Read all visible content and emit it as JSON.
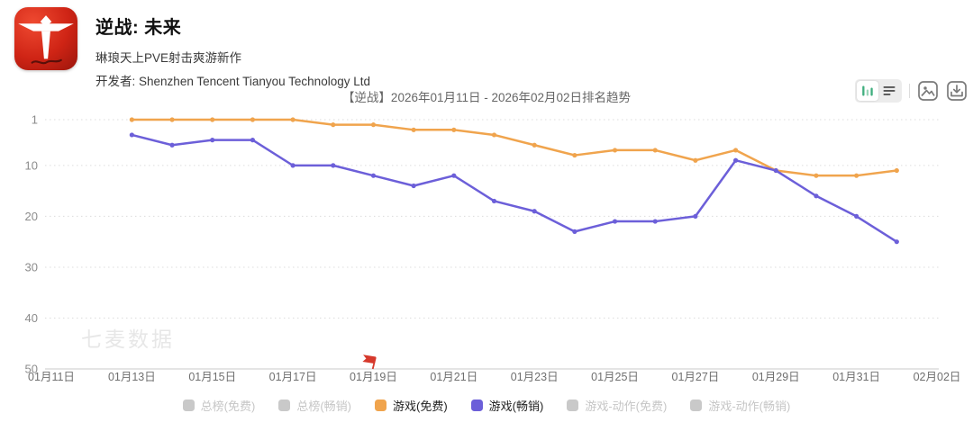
{
  "app": {
    "name": "逆战: 未来",
    "tagline": "琳琅天上PVE射击爽游新作",
    "developer_label": "开发者:",
    "developer_name": "Shenzhen Tencent Tianyou Technology Ltd",
    "icon": "nizhan-red-app-icon"
  },
  "chart_header": {
    "title": "【逆战】2026年01月11日 - 2026年02月02日排名趋势",
    "toolbar_icons": [
      "bar-chart-icon",
      "list-icon",
      "image-icon",
      "download-icon"
    ],
    "toolbar_accent_green": "#3fae7e"
  },
  "watermark": "七麦数据",
  "chart_data": {
    "type": "line",
    "title": "【逆战】2026年01月11日 - 2026年02月02日排名趋势",
    "y_axis": {
      "ticks": [
        1,
        10,
        20,
        30,
        40,
        50
      ],
      "inverted": true,
      "min": 1,
      "max": 50
    },
    "x_tick_labels": [
      "01月11日",
      "01月13日",
      "01月15日",
      "01月17日",
      "01月19日",
      "01月21日",
      "01月23日",
      "01月25日",
      "01月27日",
      "01月29日",
      "01月31日",
      "02月02日"
    ],
    "grid": "horizontal-dotted",
    "legend_position": "bottom",
    "series": [
      {
        "name": "游戏(免费)",
        "color": "#f0a44d",
        "start_day_offset": 2,
        "x": [
          "01月13日",
          "01月14日",
          "01月15日",
          "01月16日",
          "01月17日",
          "01月18日",
          "01月19日",
          "01月20日",
          "01月21日",
          "01月22日",
          "01月23日",
          "01月24日",
          "01月25日",
          "01月26日",
          "01月27日",
          "01月28日",
          "01月29日",
          "01月30日",
          "01月31日",
          "02月01日"
        ],
        "values": [
          1,
          1,
          1,
          1,
          1,
          2,
          2,
          3,
          3,
          4,
          6,
          8,
          7,
          7,
          9,
          7,
          11,
          12,
          12,
          11
        ]
      },
      {
        "name": "游戏(畅销)",
        "color": "#6c5fd9",
        "start_day_offset": 2,
        "x": [
          "01月13日",
          "01月14日",
          "01月15日",
          "01月16日",
          "01月17日",
          "01月18日",
          "01月19日",
          "01月20日",
          "01月21日",
          "01月22日",
          "01月23日",
          "01月24日",
          "01月25日",
          "01月26日",
          "01月27日",
          "01月28日",
          "01月29日",
          "01月30日",
          "01月31日",
          "02月01日"
        ],
        "values": [
          4,
          6,
          5,
          5,
          10,
          10,
          12,
          14,
          12,
          17,
          19,
          23,
          21,
          21,
          20,
          9,
          11,
          16,
          20,
          25
        ]
      }
    ],
    "annotations": [
      {
        "type": "flag",
        "date": "01月19日",
        "day_offset": 8,
        "color": "#d6392c"
      }
    ]
  },
  "legend": {
    "items": [
      {
        "label": "总榜(免费)",
        "color": "#c9c9c9",
        "active": false
      },
      {
        "label": "总榜(畅销)",
        "color": "#c9c9c9",
        "active": false
      },
      {
        "label": "游戏(免费)",
        "color": "#f0a44d",
        "active": true
      },
      {
        "label": "游戏(畅销)",
        "color": "#6c5fd9",
        "active": true
      },
      {
        "label": "游戏-动作(免费)",
        "color": "#c9c9c9",
        "active": false
      },
      {
        "label": "游戏-动作(畅销)",
        "color": "#c9c9c9",
        "active": false
      }
    ]
  }
}
